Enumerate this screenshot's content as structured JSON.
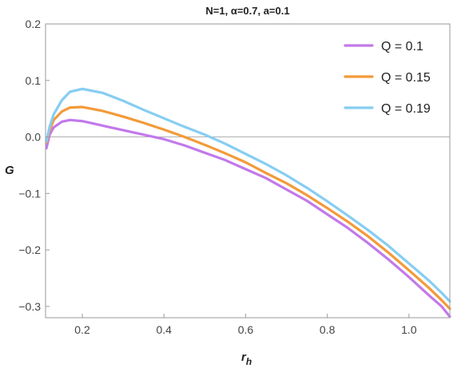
{
  "chart_data": {
    "type": "line",
    "title": "N=1, α=0.7, a=0.1",
    "xlabel": "r",
    "xlabel_sub": "h",
    "ylabel": "G",
    "xlim": [
      0.11,
      1.1
    ],
    "ylim": [
      -0.32,
      0.2
    ],
    "x_ticks": [
      0.2,
      0.4,
      0.6,
      0.8,
      1.0
    ],
    "x_tick_labels": [
      "0.2",
      "0.4",
      "0.6",
      "0.8",
      "1.0"
    ],
    "y_ticks": [
      0.2,
      0.1,
      0.0,
      -0.1,
      -0.2,
      -0.3
    ],
    "y_tick_labels": [
      "0.2",
      "0.1",
      "0.0",
      "−0.1",
      "−0.2",
      "−0.3"
    ],
    "legend_position": "top-right",
    "grid": false,
    "zero_line": true,
    "series": [
      {
        "name": "Q = 0.1",
        "color": "#c279ea",
        "points": [
          [
            0.112,
            -0.02
          ],
          [
            0.12,
            0.004
          ],
          [
            0.13,
            0.017
          ],
          [
            0.15,
            0.027
          ],
          [
            0.17,
            0.03
          ],
          [
            0.2,
            0.028
          ],
          [
            0.25,
            0.02
          ],
          [
            0.3,
            0.012
          ],
          [
            0.35,
            0.004
          ],
          [
            0.4,
            -0.004
          ],
          [
            0.45,
            -0.015
          ],
          [
            0.5,
            -0.028
          ],
          [
            0.55,
            -0.041
          ],
          [
            0.6,
            -0.057
          ],
          [
            0.65,
            -0.073
          ],
          [
            0.7,
            -0.093
          ],
          [
            0.75,
            -0.113
          ],
          [
            0.8,
            -0.137
          ],
          [
            0.85,
            -0.161
          ],
          [
            0.9,
            -0.188
          ],
          [
            0.95,
            -0.217
          ],
          [
            1.0,
            -0.248
          ],
          [
            1.05,
            -0.281
          ],
          [
            1.08,
            -0.3
          ],
          [
            1.1,
            -0.318
          ]
        ]
      },
      {
        "name": "Q = 0.15",
        "color": "#f39a39",
        "points": [
          [
            0.112,
            -0.01
          ],
          [
            0.12,
            0.012
          ],
          [
            0.13,
            0.03
          ],
          [
            0.15,
            0.045
          ],
          [
            0.17,
            0.052
          ],
          [
            0.2,
            0.053
          ],
          [
            0.25,
            0.046
          ],
          [
            0.3,
            0.036
          ],
          [
            0.35,
            0.025
          ],
          [
            0.4,
            0.013
          ],
          [
            0.45,
            0.0
          ],
          [
            0.5,
            -0.014
          ],
          [
            0.55,
            -0.029
          ],
          [
            0.6,
            -0.045
          ],
          [
            0.65,
            -0.064
          ],
          [
            0.7,
            -0.082
          ],
          [
            0.75,
            -0.103
          ],
          [
            0.8,
            -0.126
          ],
          [
            0.85,
            -0.15
          ],
          [
            0.9,
            -0.176
          ],
          [
            0.95,
            -0.205
          ],
          [
            1.0,
            -0.236
          ],
          [
            1.05,
            -0.268
          ],
          [
            1.08,
            -0.289
          ],
          [
            1.1,
            -0.304
          ]
        ]
      },
      {
        "name": "Q = 0.19",
        "color": "#86cdf2",
        "points": [
          [
            0.112,
            -0.008
          ],
          [
            0.12,
            0.018
          ],
          [
            0.13,
            0.04
          ],
          [
            0.15,
            0.065
          ],
          [
            0.17,
            0.08
          ],
          [
            0.2,
            0.085
          ],
          [
            0.25,
            0.078
          ],
          [
            0.3,
            0.064
          ],
          [
            0.35,
            0.048
          ],
          [
            0.4,
            0.033
          ],
          [
            0.45,
            0.018
          ],
          [
            0.5,
            0.004
          ],
          [
            0.55,
            -0.012
          ],
          [
            0.6,
            -0.03
          ],
          [
            0.65,
            -0.048
          ],
          [
            0.7,
            -0.068
          ],
          [
            0.75,
            -0.09
          ],
          [
            0.8,
            -0.114
          ],
          [
            0.85,
            -0.139
          ],
          [
            0.9,
            -0.165
          ],
          [
            0.95,
            -0.193
          ],
          [
            1.0,
            -0.224
          ],
          [
            1.05,
            -0.255
          ],
          [
            1.08,
            -0.276
          ],
          [
            1.1,
            -0.291
          ]
        ]
      }
    ]
  }
}
